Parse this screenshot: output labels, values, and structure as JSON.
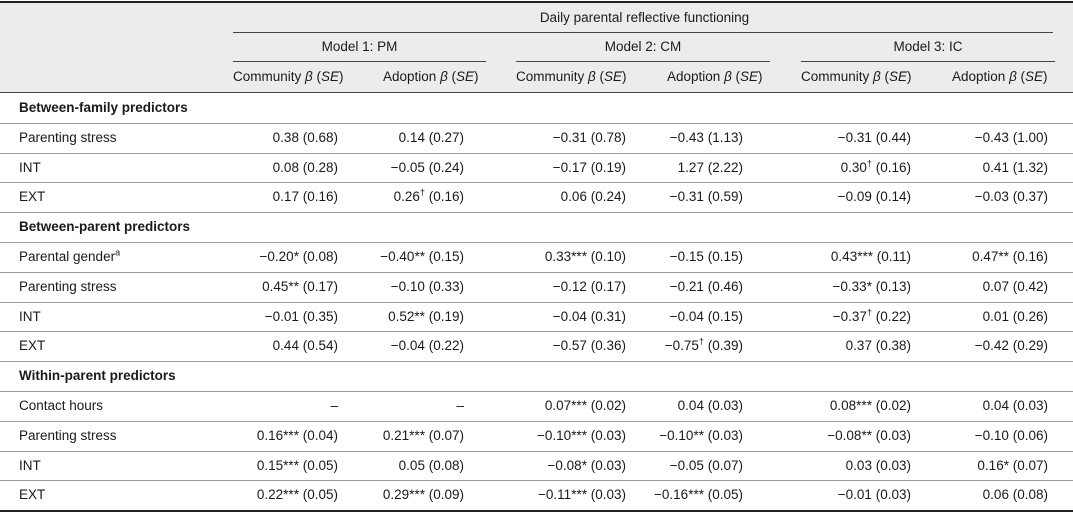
{
  "header": {
    "main_title": "Daily parental reflective functioning",
    "models": [
      "Model 1: PM",
      "Model 2: CM",
      "Model 3: IC"
    ],
    "community_label": "Community",
    "adoption_label": "Adoption",
    "beta_symbol": "β",
    "se_label": "SE"
  },
  "rows": [
    {
      "type": "section",
      "label": "Between-family predictors"
    },
    {
      "type": "data",
      "label": "Parenting stress",
      "values": [
        {
          "v": "0.38",
          "se": "(0.68)"
        },
        {
          "v": "0.14",
          "se": "(0.27)"
        },
        {
          "v": "−0.31",
          "se": "(0.78)"
        },
        {
          "v": "−0.43",
          "se": "(1.13)"
        },
        {
          "v": "−0.31",
          "se": "(0.44)"
        },
        {
          "v": "−0.43",
          "se": "(1.00)"
        }
      ]
    },
    {
      "type": "data",
      "label": "INT",
      "values": [
        {
          "v": "0.08",
          "se": "(0.28)"
        },
        {
          "v": "−0.05",
          "se": "(0.24)"
        },
        {
          "v": "−0.17",
          "se": "(0.19)"
        },
        {
          "v": "1.27",
          "se": "(2.22)"
        },
        {
          "v": "0.30",
          "sup": "†",
          "se": "(0.16)"
        },
        {
          "v": "0.41",
          "se": "(1.32)"
        }
      ]
    },
    {
      "type": "data",
      "label": "EXT",
      "values": [
        {
          "v": "0.17",
          "se": "(0.16)"
        },
        {
          "v": "0.26",
          "sup": "†",
          "se": "(0.16)"
        },
        {
          "v": "0.06",
          "se": "(0.24)"
        },
        {
          "v": "−0.31",
          "se": "(0.59)"
        },
        {
          "v": "−0.09",
          "se": "(0.14)"
        },
        {
          "v": "−0.03",
          "se": "(0.37)"
        }
      ]
    },
    {
      "type": "section",
      "label": "Between-parent predictors"
    },
    {
      "type": "data",
      "label": "Parental gender",
      "label_sup": "a",
      "values": [
        {
          "v": "−0.20*",
          "se": "(0.08)"
        },
        {
          "v": "−0.40**",
          "se": "(0.15)"
        },
        {
          "v": "0.33***",
          "se": "(0.10)"
        },
        {
          "v": "−0.15",
          "se": "(0.15)"
        },
        {
          "v": "0.43***",
          "se": "(0.11)"
        },
        {
          "v": "0.47**",
          "se": "(0.16)"
        }
      ]
    },
    {
      "type": "data",
      "label": "Parenting stress",
      "values": [
        {
          "v": "0.45**",
          "se": "(0.17)"
        },
        {
          "v": "−0.10",
          "se": "(0.33)"
        },
        {
          "v": "−0.12",
          "se": "(0.17)"
        },
        {
          "v": "−0.21",
          "se": "(0.46)"
        },
        {
          "v": "−0.33*",
          "se": "(0.13)"
        },
        {
          "v": "0.07",
          "se": "(0.42)"
        }
      ]
    },
    {
      "type": "data",
      "label": "INT",
      "values": [
        {
          "v": "−0.01",
          "se": "(0.35)"
        },
        {
          "v": "0.52**",
          "se": "(0.19)"
        },
        {
          "v": "−0.04",
          "se": "(0.31)"
        },
        {
          "v": "−0.04",
          "se": "(0.15)"
        },
        {
          "v": "−0.37",
          "sup": "†",
          "se": "(0.22)"
        },
        {
          "v": "0.01",
          "se": "(0.26)"
        }
      ]
    },
    {
      "type": "data",
      "label": "EXT",
      "values": [
        {
          "v": "0.44",
          "se": "(0.54)"
        },
        {
          "v": "−0.04",
          "se": "(0.22)"
        },
        {
          "v": "−0.57",
          "se": "(0.36)"
        },
        {
          "v": "−0.75",
          "sup": "†",
          "se": "(0.39)"
        },
        {
          "v": "0.37",
          "se": "(0.38)"
        },
        {
          "v": "−0.42",
          "se": "(0.29)"
        }
      ]
    },
    {
      "type": "section",
      "label": "Within-parent predictors"
    },
    {
      "type": "data",
      "label": "Contact hours",
      "values": [
        {
          "v": "–",
          "se": ""
        },
        {
          "v": "–",
          "se": ""
        },
        {
          "v": "0.07***",
          "se": "(0.02)"
        },
        {
          "v": "0.04",
          "se": "(0.03)"
        },
        {
          "v": "0.08***",
          "se": "(0.02)"
        },
        {
          "v": "0.04",
          "se": "(0.03)"
        }
      ]
    },
    {
      "type": "data",
      "label": "Parenting stress",
      "values": [
        {
          "v": "0.16***",
          "se": "(0.04)"
        },
        {
          "v": "0.21***",
          "se": "(0.07)"
        },
        {
          "v": "−0.10***",
          "se": "(0.03)"
        },
        {
          "v": "−0.10**",
          "se": "(0.03)"
        },
        {
          "v": "−0.08**",
          "se": "(0.03)"
        },
        {
          "v": "−0.10",
          "se": "(0.06)"
        }
      ]
    },
    {
      "type": "data",
      "label": "INT",
      "values": [
        {
          "v": "0.15***",
          "se": "(0.05)"
        },
        {
          "v": "0.05",
          "se": "(0.08)"
        },
        {
          "v": "−0.08*",
          "se": "(0.03)"
        },
        {
          "v": "−0.05",
          "se": "(0.07)"
        },
        {
          "v": "0.03",
          "se": "(0.03)"
        },
        {
          "v": "0.16*",
          "se": "(0.07)"
        }
      ]
    },
    {
      "type": "data",
      "label": "EXT",
      "values": [
        {
          "v": "0.22***",
          "se": "(0.05)"
        },
        {
          "v": "0.29***",
          "se": "(0.09)"
        },
        {
          "v": "−0.11***",
          "se": "(0.03)"
        },
        {
          "v": "−0.16***",
          "se": "(0.05)"
        },
        {
          "v": "−0.01",
          "se": "(0.03)"
        },
        {
          "v": "0.06",
          "se": "(0.08)"
        }
      ]
    }
  ]
}
